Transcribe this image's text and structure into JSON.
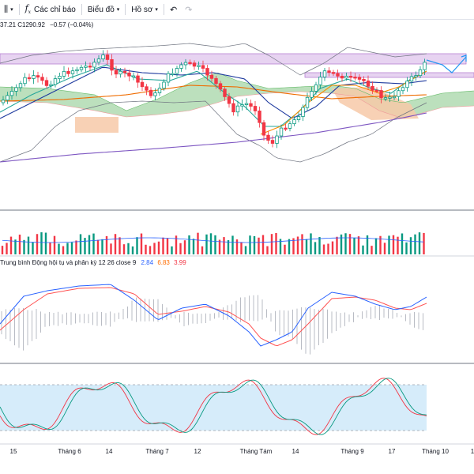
{
  "toolbar": {
    "interval_icon": "candles-icon",
    "indicators_label": "Các chỉ báo",
    "chart_label": "Biểu đồ",
    "profile_label": "Hồ sơ",
    "undo_icon": "undo-icon",
    "redo_icon": "redo-icon"
  },
  "legend": {
    "ohlc_text": "37.21  C1290.92",
    "change_text": "−0.57 (−0.04%)"
  },
  "macd": {
    "title": "Trung bình Động hội tụ và phân kỳ 12 26 close 9",
    "v1": "2.84",
    "v2": "6.83",
    "v3": "3.99"
  },
  "x_axis": {
    "labels": [
      "15",
      "Tháng 6",
      "14",
      "Tháng 7",
      "12",
      "Tháng Tám",
      "14",
      "Tháng 9",
      "17",
      "Tháng 10",
      "1"
    ]
  },
  "colors": {
    "up": "#089981",
    "down": "#f23645",
    "macd_line": "#2962ff",
    "signal_line": "#ff5252",
    "cloud_green": "#a5d6a7",
    "cloud_orange": "#f7c9a8",
    "stoch_band": "#d6ecfa",
    "purple_zone": "#e1c8ee"
  }
}
